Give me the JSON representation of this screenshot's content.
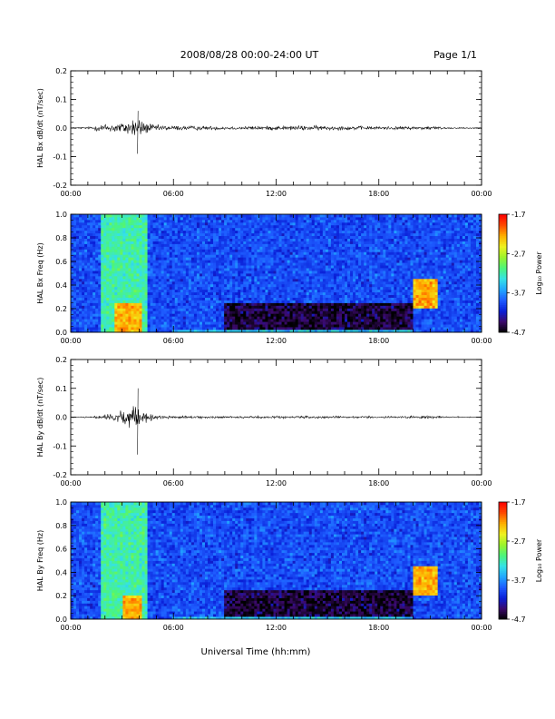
{
  "header": {
    "date_range": "2008/08/28  00:00-24:00 UT",
    "page": "Page 1/1"
  },
  "colors": {
    "trace": "#000000",
    "spectrogram_scale": [
      "#000000",
      "#3b0a6b",
      "#0a1fd8",
      "#1e5cff",
      "#21a7ff",
      "#35e2e6",
      "#4cf57a",
      "#9bf32b",
      "#eef220",
      "#ffb000",
      "#ff4a00",
      "#ff0000"
    ]
  },
  "chart_data": [
    {
      "type": "line",
      "ylabel": "HAL Bx dB/dt (nT/sec)",
      "ylim": [
        -0.2,
        0.2
      ],
      "yticks": [
        "0.2",
        "0.1",
        "0.0",
        "-0.1",
        "-0.2"
      ],
      "xlim": [
        "00:00",
        "24:00"
      ],
      "xticks": [
        "00:00",
        "06:00",
        "12:00",
        "18:00",
        "00:00"
      ],
      "envelope": {
        "x_hours": [
          0,
          1,
          1.8,
          2.5,
          3.2,
          3.9,
          4.3,
          5.0,
          6.0,
          8.0,
          10.0,
          12.0,
          14.0,
          16.0,
          18.0,
          20.0,
          21.0,
          22.0,
          24.0
        ],
        "amplitude": [
          0.003,
          0.005,
          0.02,
          0.025,
          0.03,
          0.06,
          0.03,
          0.015,
          0.012,
          0.01,
          0.008,
          0.01,
          0.012,
          0.01,
          0.008,
          0.008,
          0.01,
          0.004,
          0.003
        ],
        "min_peak": {
          "x_hours": 3.9,
          "value": -0.09
        },
        "max_peak": {
          "x_hours": 3.9,
          "value": 0.06
        }
      }
    },
    {
      "type": "heatmap",
      "ylabel": "HAL Bx Freq (Hz)",
      "ylim": [
        0.0,
        1.0
      ],
      "yticks": [
        "1.0",
        "0.8",
        "0.6",
        "0.4",
        "0.2",
        "0.0"
      ],
      "xlim": [
        "00:00",
        "24:00"
      ],
      "xticks": [
        "00:00",
        "06:00",
        "12:00",
        "18:00",
        "00:00"
      ],
      "colorbar": {
        "label": "Log₁₀ Power",
        "ticks": [
          "-1.7",
          "-2.7",
          "-3.7",
          "-4.7"
        ],
        "range": [
          -4.7,
          -1.7
        ]
      },
      "features": [
        {
          "desc": "broadband enhancement",
          "x_hours": [
            1.8,
            4.5
          ],
          "freq_hz": [
            0.0,
            1.0
          ],
          "log_power": -2.9
        },
        {
          "desc": "intense low-frequency burst",
          "x_hours": [
            2.5,
            4.2
          ],
          "freq_hz": [
            0.0,
            0.25
          ],
          "log_power": -2.0
        },
        {
          "desc": "narrowband emission",
          "x_hours": [
            20.0,
            21.5
          ],
          "freq_hz": [
            0.2,
            0.45
          ],
          "log_power": -2.0
        },
        {
          "desc": "near-zero frequency band",
          "x_hours": [
            6.0,
            20.0
          ],
          "freq_hz": [
            0.0,
            0.03
          ],
          "log_power": -3.2
        }
      ]
    },
    {
      "type": "line",
      "ylabel": "HAL By dB/dt (nT/sec)",
      "ylim": [
        -0.2,
        0.2
      ],
      "yticks": [
        "0.2",
        "0.1",
        "0.0",
        "-0.1",
        "-0.2"
      ],
      "xlim": [
        "00:00",
        "24:00"
      ],
      "xticks": [
        "00:00",
        "06:00",
        "12:00",
        "18:00",
        "00:00"
      ],
      "envelope": {
        "x_hours": [
          0,
          1,
          1.8,
          2.5,
          3.2,
          3.9,
          4.3,
          5.0,
          6.0,
          8.0,
          10.0,
          12.0,
          14.0,
          16.0,
          18.0,
          20.0,
          21.0,
          22.0,
          24.0
        ],
        "amplitude": [
          0.002,
          0.003,
          0.012,
          0.02,
          0.035,
          0.07,
          0.03,
          0.01,
          0.006,
          0.006,
          0.005,
          0.006,
          0.006,
          0.005,
          0.005,
          0.006,
          0.008,
          0.003,
          0.002
        ],
        "min_peak": {
          "x_hours": 3.9,
          "value": -0.13
        },
        "max_peak": {
          "x_hours": 3.9,
          "value": 0.1
        }
      }
    },
    {
      "type": "heatmap",
      "ylabel": "HAL By Freq (Hz)",
      "ylim": [
        0.0,
        1.0
      ],
      "yticks": [
        "1.0",
        "0.8",
        "0.6",
        "0.4",
        "0.2",
        "0.0"
      ],
      "xlim": [
        "00:00",
        "24:00"
      ],
      "xticks": [
        "00:00",
        "06:00",
        "12:00",
        "18:00",
        "00:00"
      ],
      "colorbar": {
        "label": "Log₁₀ Power",
        "ticks": [
          "-1.7",
          "-2.7",
          "-3.7",
          "-4.7"
        ],
        "range": [
          -4.7,
          -1.7
        ]
      },
      "features": [
        {
          "desc": "broadband enhancement",
          "x_hours": [
            1.8,
            4.5
          ],
          "freq_hz": [
            0.0,
            1.0
          ],
          "log_power": -2.9
        },
        {
          "desc": "intense low-frequency burst",
          "x_hours": [
            3.0,
            4.2
          ],
          "freq_hz": [
            0.0,
            0.2
          ],
          "log_power": -2.0
        },
        {
          "desc": "narrowband emission",
          "x_hours": [
            20.0,
            21.5
          ],
          "freq_hz": [
            0.2,
            0.45
          ],
          "log_power": -2.0
        },
        {
          "desc": "near-zero frequency band",
          "x_hours": [
            6.0,
            20.0
          ],
          "freq_hz": [
            0.0,
            0.03
          ],
          "log_power": -3.2
        }
      ]
    }
  ],
  "xlabel": "Universal Time (hh:mm)"
}
